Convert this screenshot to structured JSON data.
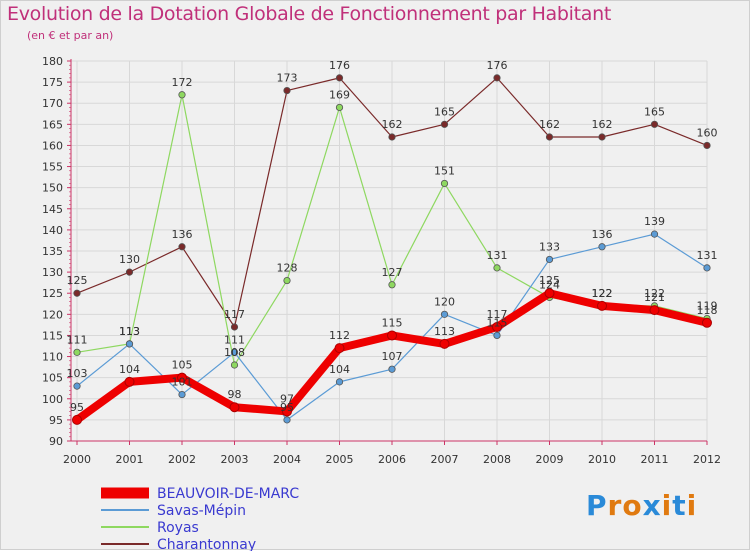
{
  "header": {
    "title": "Evolution de la Dotation Globale de Fonctionnement par Habitant",
    "subtitle": "(en € et par an)"
  },
  "brand": {
    "letters": [
      "P",
      "r",
      "o",
      "x",
      "i",
      "t",
      "i"
    ],
    "colors": [
      "#2a8ad8",
      "#e07a10",
      "#e07a10",
      "#2a8ad8",
      "#e07a10",
      "#2a8ad8",
      "#e07a10"
    ]
  },
  "chart_data": {
    "type": "line",
    "x": [
      "2000",
      "2001",
      "2002",
      "2003",
      "2004",
      "2005",
      "2006",
      "2007",
      "2008",
      "2009",
      "2010",
      "2011",
      "2012"
    ],
    "ylim": [
      90,
      180
    ],
    "yticks": [
      90,
      95,
      100,
      105,
      110,
      115,
      120,
      125,
      130,
      135,
      140,
      145,
      150,
      155,
      160,
      165,
      170,
      175,
      180
    ],
    "grid": true,
    "legend_placement": "bottom-left",
    "series": [
      {
        "name": "BEAUVOIR-DE-MARC",
        "color": "#ee0000",
        "values": [
          95,
          104,
          105,
          98,
          97,
          112,
          115,
          113,
          117,
          125,
          122,
          121,
          118
        ],
        "labels": [
          "95",
          "104",
          "105",
          "98",
          "97",
          "112",
          "115",
          "113",
          "117",
          "125",
          "122",
          "121",
          "118"
        ]
      },
      {
        "name": "Savas-Mépin",
        "color": "#5b9bd5",
        "values": [
          103,
          113,
          101,
          111,
          95,
          104,
          107,
          120,
          115,
          133,
          136,
          139,
          131
        ],
        "labels": [
          "103",
          "113",
          "101",
          "111",
          "95",
          "104",
          "107",
          "120",
          "115",
          "133",
          "136",
          "139",
          "131"
        ]
      },
      {
        "name": "Royas",
        "color": "#8ed860",
        "values": [
          111,
          113,
          172,
          108,
          128,
          169,
          127,
          151,
          131,
          124,
          122,
          122,
          119
        ],
        "labels": [
          "111",
          "113",
          "172",
          "108",
          "128",
          "169",
          "127",
          "151",
          "131",
          "124",
          "122",
          "122",
          "119"
        ]
      },
      {
        "name": "Charantonnay",
        "color": "#7a2a2a",
        "values": [
          125,
          130,
          136,
          117,
          173,
          176,
          162,
          165,
          176,
          162,
          162,
          165,
          160
        ],
        "labels": [
          "125",
          "130",
          "136",
          "117",
          "173",
          "176",
          "162",
          "165",
          "176",
          "162",
          "162",
          "165",
          "160"
        ]
      }
    ]
  }
}
